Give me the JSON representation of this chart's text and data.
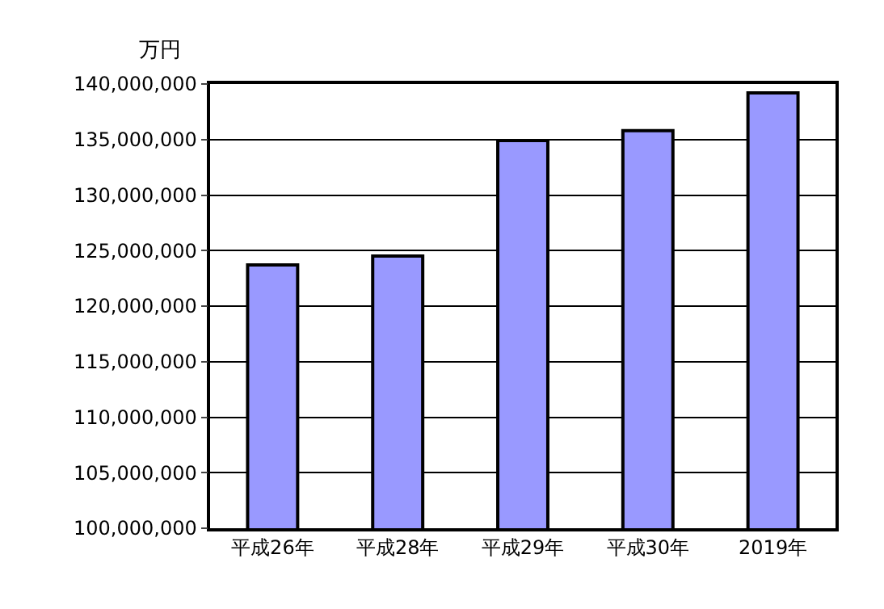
{
  "chart_data": {
    "type": "bar",
    "ylabel": "万円",
    "categories": [
      "平成26年",
      "平成28年",
      "平成29年",
      "平成30年",
      "2019年"
    ],
    "values": [
      123700000,
      124500000,
      134900000,
      135800000,
      139200000
    ],
    "color": "#9999ff",
    "ylim": [
      100000000,
      140000000
    ],
    "yticks": [
      {
        "value": 100000000,
        "label": "100,000,000"
      },
      {
        "value": 105000000,
        "label": "105,000,000"
      },
      {
        "value": 110000000,
        "label": "110,000,000"
      },
      {
        "value": 115000000,
        "label": "115,000,000"
      },
      {
        "value": 120000000,
        "label": "120,000,000"
      },
      {
        "value": 125000000,
        "label": "125,000,000"
      },
      {
        "value": 130000000,
        "label": "130,000,000"
      },
      {
        "value": 135000000,
        "label": "135,000,000"
      },
      {
        "value": 140000000,
        "label": "140,000,000"
      }
    ],
    "grid": "y"
  }
}
